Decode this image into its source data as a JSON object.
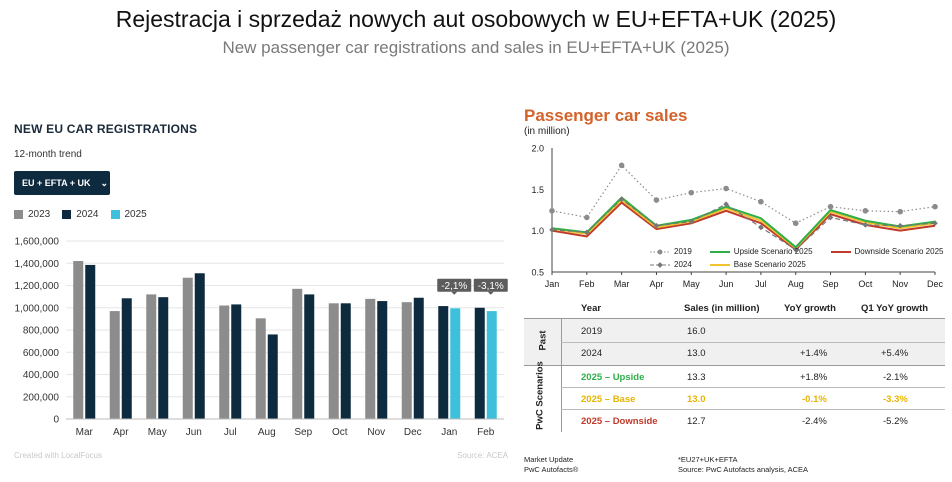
{
  "title": "Rejestracja i sprzedaż nowych aut osobowych w EU+EFTA+UK (2025)",
  "subtitle": "New passenger car registrations and sales in EU+EFTA+UK (2025)",
  "left_panel": {
    "title": "NEW EU CAR REGISTRATIONS",
    "subtitle": "12-month trend",
    "region": "EU + EFTA + UK",
    "footer_left": "Created with LocalFocus",
    "footer_right": "Source:  ACEA"
  },
  "right_panel": {
    "title": "Passenger car sales",
    "unit": "(in million)",
    "table": {
      "headers": [
        "Year",
        "Sales (in million)",
        "YoY growth",
        "Q1 YoY growth"
      ],
      "past_label": "Past",
      "scenarios_label": "PwC Scenarios",
      "past_rows": [
        {
          "year": "2019",
          "sales": "16.0",
          "yoy": "",
          "q1": ""
        },
        {
          "year": "2024",
          "sales": "13.0",
          "yoy": "+1.4%",
          "q1": "+5.4%"
        }
      ],
      "scenario_rows": [
        {
          "year": "2025 – Upside",
          "sales": "13.3",
          "yoy": "+1.8%",
          "q1": "-2.1%",
          "color": "#2fae4a"
        },
        {
          "year": "2025 – Base",
          "sales": "13.0",
          "yoy": "-0.1%",
          "q1": "-3.3%",
          "color": "#e8b400"
        },
        {
          "year": "2025 – Downside",
          "sales": "12.7",
          "yoy": "-2.4%",
          "q1": "-5.2%",
          "color": "#c0392b"
        }
      ]
    },
    "note_left": [
      "Market Update",
      "PwC Autofacts®"
    ],
    "note_right": [
      "*EU27+UK+EFTA",
      "Source: PwC Autofacts analysis, ACEA"
    ]
  },
  "chart_data": [
    {
      "type": "bar",
      "title": "NEW EU CAR REGISTRATIONS",
      "categories": [
        "Mar",
        "Apr",
        "May",
        "Jun",
        "Jul",
        "Aug",
        "Sep",
        "Oct",
        "Nov",
        "Dec",
        "Jan",
        "Feb"
      ],
      "series": [
        {
          "name": "2023",
          "color": "#8c8c8c",
          "values": [
            1420000,
            970000,
            1120000,
            1270000,
            1020000,
            905000,
            1170000,
            1040000,
            1080000,
            1050000,
            null,
            null
          ]
        },
        {
          "name": "2024",
          "color": "#0e2a3f",
          "values": [
            1385000,
            1085000,
            1095000,
            1310000,
            1030000,
            760000,
            1120000,
            1040000,
            1060000,
            1090000,
            1015000,
            1000000
          ]
        },
        {
          "name": "2025",
          "color": "#3ec0dc",
          "values": [
            null,
            null,
            null,
            null,
            null,
            null,
            null,
            null,
            null,
            null,
            995000,
            970000
          ]
        }
      ],
      "ylim": [
        0,
        1600000
      ],
      "yticks": [
        "0",
        "200,000",
        "400,000",
        "600,000",
        "800,000",
        "1,000,000",
        "1,200,000",
        "1,400,000",
        "1,600,000"
      ],
      "annotations": [
        {
          "category": "Jan",
          "text": "-2,1%"
        },
        {
          "category": "Feb",
          "text": "-3,1%"
        }
      ],
      "legend": "top-left",
      "grid": true
    },
    {
      "type": "line",
      "title": "Passenger car sales",
      "ylabel": "(in million)",
      "categories": [
        "Jan",
        "Feb",
        "Mar",
        "Apr",
        "May",
        "Jun",
        "Jul",
        "Aug",
        "Sep",
        "Oct",
        "Nov",
        "Dec"
      ],
      "ylim": [
        0.5,
        2.0
      ],
      "yticks": [
        "0.5",
        "1.0",
        "1.5",
        "2.0"
      ],
      "series": [
        {
          "name": "2019",
          "color": "#8c8c8c",
          "style": "dotted-circle",
          "values": [
            1.24,
            1.16,
            1.79,
            1.37,
            1.46,
            1.51,
            1.35,
            1.09,
            1.29,
            1.24,
            1.23,
            1.29
          ]
        },
        {
          "name": "2024",
          "color": "#777777",
          "style": "dashed-diamond",
          "values": [
            1.01,
            0.98,
            1.38,
            1.06,
            1.11,
            1.32,
            1.04,
            0.77,
            1.16,
            1.07,
            1.06,
            1.09
          ]
        },
        {
          "name": "Upside Scenario 2025",
          "color": "#2fae4a",
          "style": "solid",
          "values": [
            1.03,
            0.98,
            1.4,
            1.06,
            1.13,
            1.29,
            1.15,
            0.8,
            1.25,
            1.12,
            1.05,
            1.11
          ]
        },
        {
          "name": "Base Scenario 2025",
          "color": "#f2c230",
          "style": "solid",
          "values": [
            1.02,
            0.96,
            1.37,
            1.04,
            1.11,
            1.27,
            1.12,
            0.79,
            1.23,
            1.1,
            1.03,
            1.09
          ]
        },
        {
          "name": "Downside Scenario 2025",
          "color": "#c0392b",
          "style": "solid",
          "values": [
            1.0,
            0.93,
            1.34,
            1.02,
            1.09,
            1.24,
            1.09,
            0.77,
            1.2,
            1.07,
            1.0,
            1.06
          ]
        }
      ],
      "legend": "bottom-center",
      "grid": false
    }
  ]
}
